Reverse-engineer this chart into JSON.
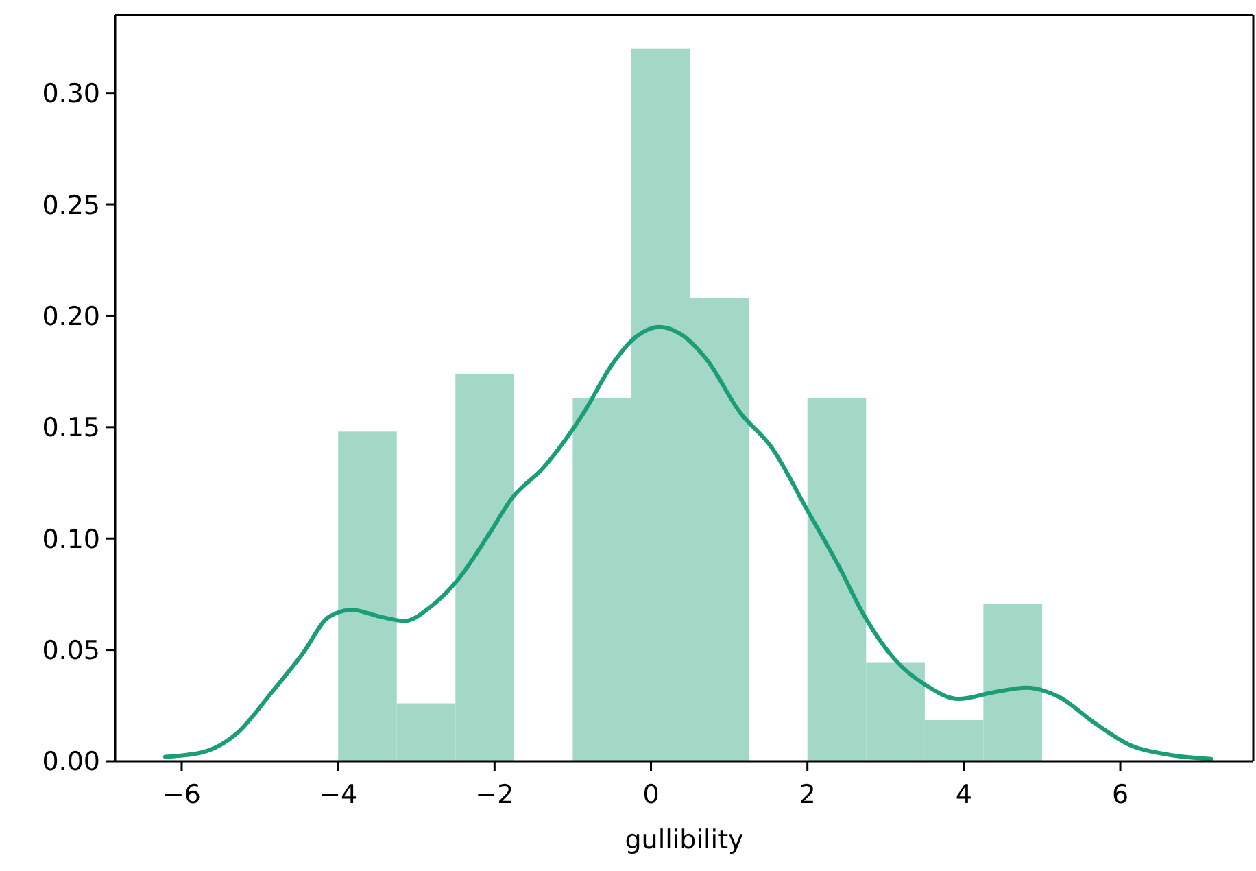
{
  "chart_data": {
    "type": "histogram",
    "xlabel": "gullibility",
    "xlim": [
      -6.85,
      7.7
    ],
    "ylim": [
      0,
      0.335
    ],
    "xticks": [
      {
        "value": -6,
        "label": "−6"
      },
      {
        "value": -4,
        "label": "−4"
      },
      {
        "value": -2,
        "label": "−2"
      },
      0,
      2,
      4,
      6
    ],
    "yticks": [
      {
        "value": 0,
        "label": "0.00"
      },
      {
        "value": 0.05,
        "label": "0.05"
      },
      {
        "value": 0.1,
        "label": "0.10"
      },
      {
        "value": 0.15,
        "label": "0.15"
      },
      {
        "value": 0.2,
        "label": "0.20"
      },
      {
        "value": 0.25,
        "label": "0.25"
      },
      {
        "value": 0.3,
        "label": "0.30"
      }
    ],
    "grid": false,
    "legend": false,
    "series": [
      {
        "color": "#a3d8c7",
        "bins": [
          -4,
          -3.25,
          -2.5,
          -1.75,
          -1,
          -0.25,
          0.5,
          1.25,
          2,
          2.75,
          3.5,
          4.25,
          5
        ],
        "values": [
          0.148,
          0.026,
          0.174,
          0,
          0.163,
          0.32,
          0.208,
          0,
          0.163,
          0.0445,
          0.0185,
          0.0706
        ]
      },
      {
        "type": "line",
        "color": "#1b9e77",
        "x": [
          -6.21,
          -5.74,
          -5.28,
          -4.87,
          -4.46,
          -4.11,
          -3.82,
          -3.47,
          -3.15,
          -2.83,
          -2.48,
          -2.07,
          -1.78,
          -1.37,
          -1.08,
          -0.85,
          -0.5,
          -0.21,
          0.11,
          0.37,
          0.72,
          1.13,
          1.54,
          2.01,
          2.41,
          2.7,
          3.11,
          3.52,
          3.93,
          4.39,
          4.8,
          5.21,
          5.68,
          6.14,
          6.61,
          7.16
        ],
        "values": [
          0.002,
          0.004,
          0.013,
          0.03,
          0.048,
          0.065,
          0.068,
          0.065,
          0.063,
          0.069,
          0.081,
          0.102,
          0.118,
          0.132,
          0.145,
          0.157,
          0.178,
          0.19,
          0.195,
          0.192,
          0.18,
          0.157,
          0.141,
          0.112,
          0.087,
          0.067,
          0.046,
          0.034,
          0.028,
          0.031,
          0.033,
          0.029,
          0.017,
          0.007,
          0.003,
          0.001
        ]
      }
    ]
  }
}
